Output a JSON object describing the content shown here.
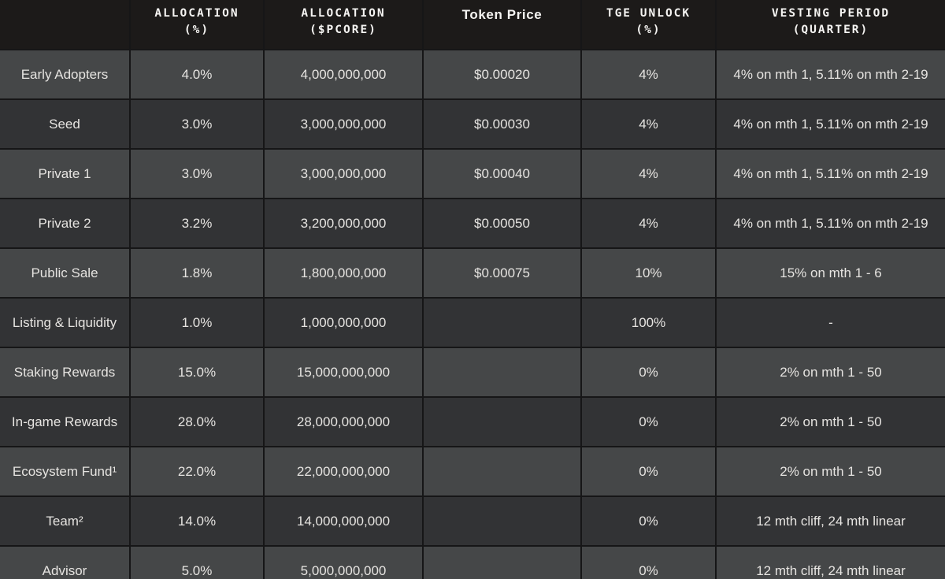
{
  "page": {
    "title": "Token allocation / vesting table"
  },
  "colors": {
    "header_bg": "#1c1a19",
    "row_light": "#454748",
    "row_dark": "#323335",
    "grid_line": "#161617",
    "header_text": "#f5f4f2",
    "cell_text": "#e6e4e1"
  },
  "table": {
    "headers": {
      "label": {
        "line1": "",
        "line2": ""
      },
      "allocation_pct": {
        "line1": "ALLOCATION",
        "line2": "(%)"
      },
      "allocation_pcore": {
        "line1": "ALLOCATION",
        "line2": "($PCORE)"
      },
      "token_price": {
        "line1": "Token Price",
        "line2": ""
      },
      "tge_unlock": {
        "line1": "TGE UNLOCK",
        "line2": "(%)"
      },
      "vesting": {
        "line1": "VESTING PERIOD",
        "line2": "(QUARTER)"
      }
    },
    "rows": [
      {
        "label": "Early Adopters",
        "allocation_pct": "4.0%",
        "allocation_pcore": "4,000,000,000",
        "token_price": "$0.00020",
        "tge_unlock": "4%",
        "vesting": "4% on mth 1, 5.11% on mth 2-19"
      },
      {
        "label": "Seed",
        "allocation_pct": "3.0%",
        "allocation_pcore": "3,000,000,000",
        "token_price": "$0.00030",
        "tge_unlock": "4%",
        "vesting": "4% on mth 1, 5.11% on mth 2-19"
      },
      {
        "label": "Private 1",
        "allocation_pct": "3.0%",
        "allocation_pcore": "3,000,000,000",
        "token_price": "$0.00040",
        "tge_unlock": "4%",
        "vesting": "4% on mth 1, 5.11% on mth 2-19"
      },
      {
        "label": "Private 2",
        "allocation_pct": "3.2%",
        "allocation_pcore": "3,200,000,000",
        "token_price": "$0.00050",
        "tge_unlock": "4%",
        "vesting": "4% on mth 1, 5.11% on mth 2-19"
      },
      {
        "label": "Public Sale",
        "allocation_pct": "1.8%",
        "allocation_pcore": "1,800,000,000",
        "token_price": "$0.00075",
        "tge_unlock": "10%",
        "vesting": "15% on mth 1 - 6"
      },
      {
        "label": "Listing & Liquidity",
        "allocation_pct": "1.0%",
        "allocation_pcore": "1,000,000,000",
        "token_price": "",
        "tge_unlock": "100%",
        "vesting": "-"
      },
      {
        "label": "Staking Rewards",
        "allocation_pct": "15.0%",
        "allocation_pcore": "15,000,000,000",
        "token_price": "",
        "tge_unlock": "0%",
        "vesting": "2% on mth 1 - 50"
      },
      {
        "label": "In-game Rewards",
        "allocation_pct": "28.0%",
        "allocation_pcore": "28,000,000,000",
        "token_price": "",
        "tge_unlock": "0%",
        "vesting": "2% on mth 1 - 50"
      },
      {
        "label": "Ecosystem Fund¹",
        "allocation_pct": "22.0%",
        "allocation_pcore": "22,000,000,000",
        "token_price": "",
        "tge_unlock": "0%",
        "vesting": "2% on mth 1 - 50"
      },
      {
        "label": "Team²",
        "allocation_pct": "14.0%",
        "allocation_pcore": "14,000,000,000",
        "token_price": "",
        "tge_unlock": "0%",
        "vesting": "12 mth cliff, 24 mth linear"
      },
      {
        "label": "Advisor",
        "allocation_pct": "5.0%",
        "allocation_pcore": "5,000,000,000",
        "token_price": "",
        "tge_unlock": "0%",
        "vesting": "12 mth cliff, 24 mth linear"
      }
    ]
  }
}
